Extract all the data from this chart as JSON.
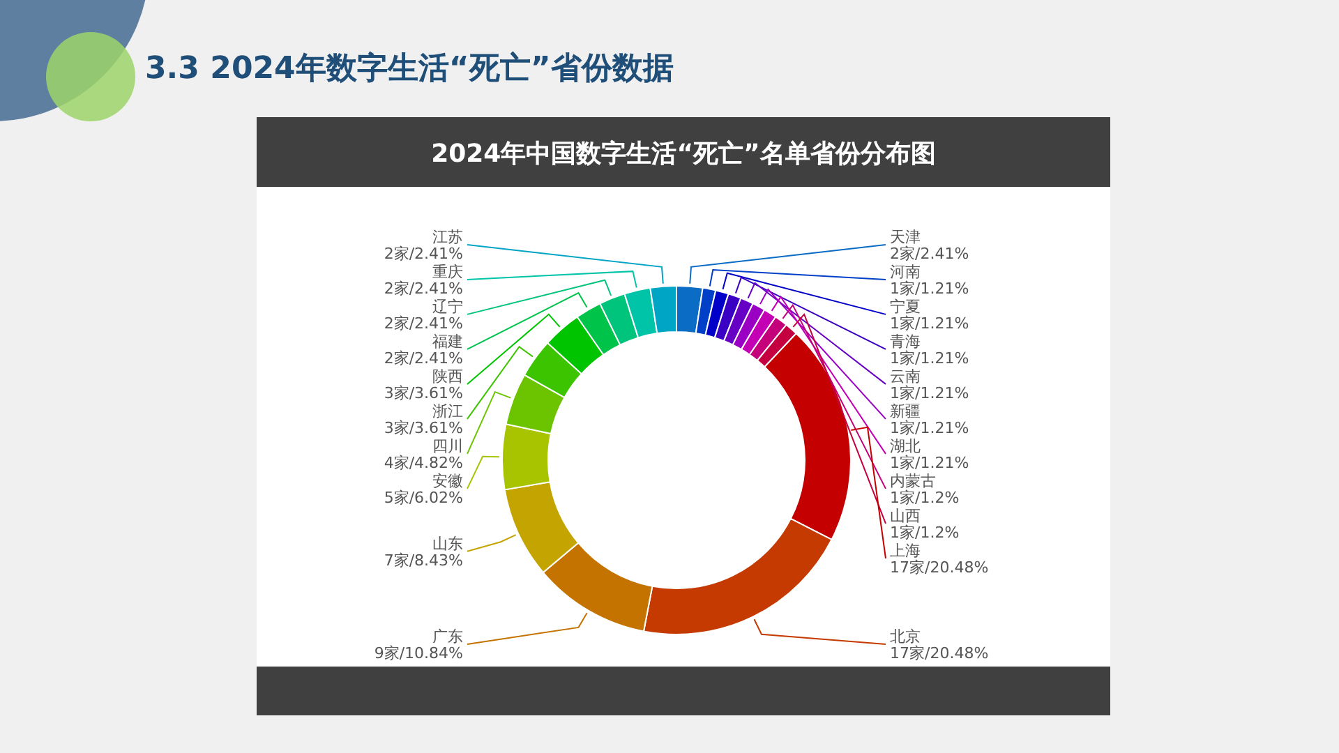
{
  "chart_data": {
    "type": "donut",
    "title": "3.3 2024年数字生活“死亡”省份数据",
    "subtitle": "2024年中国数字生活“死亡”名单省份分布图",
    "categories": [
      "天津",
      "河南",
      "宁夏",
      "青海",
      "云南",
      "新疆",
      "湖北",
      "内蒙古",
      "山西",
      "上海",
      "北京",
      "广东",
      "山东",
      "安徽",
      "四川",
      "浙江",
      "陕西",
      "福建",
      "辽宁",
      "重庆",
      "江苏"
    ],
    "values": [
      2,
      1,
      1,
      1,
      1,
      1,
      1,
      1,
      1,
      17,
      17,
      9,
      7,
      5,
      4,
      3,
      3,
      2,
      2,
      2,
      2
    ],
    "value_labels": [
      "2家/2.41%",
      "1家/1.21%",
      "1家/1.21%",
      "1家/1.21%",
      "1家/1.21%",
      "1家/1.21%",
      "1家/1.21%",
      "1家/1.2%",
      "1家/1.2%",
      "17家/20.48%",
      "17家/20.48%",
      "9家/10.84%",
      "7家/8.43%",
      "5家/6.02%",
      "4家/4.82%",
      "3家/3.61%",
      "3家/3.61%",
      "2家/2.41%",
      "2家/2.41%",
      "2家/2.41%",
      "2家/2.41%"
    ],
    "colors": [
      "#0a6cc4",
      "#0040c8",
      "#0000c8",
      "#3a00c4",
      "#6600c4",
      "#9900c4",
      "#c400b4",
      "#c4007a",
      "#c40040",
      "#c40000",
      "#c43a00",
      "#c47200",
      "#c4a400",
      "#a8c400",
      "#6cc400",
      "#3cc400",
      "#00c400",
      "#00c44a",
      "#00c47c",
      "#00c4a8",
      "#00a4c4"
    ]
  }
}
